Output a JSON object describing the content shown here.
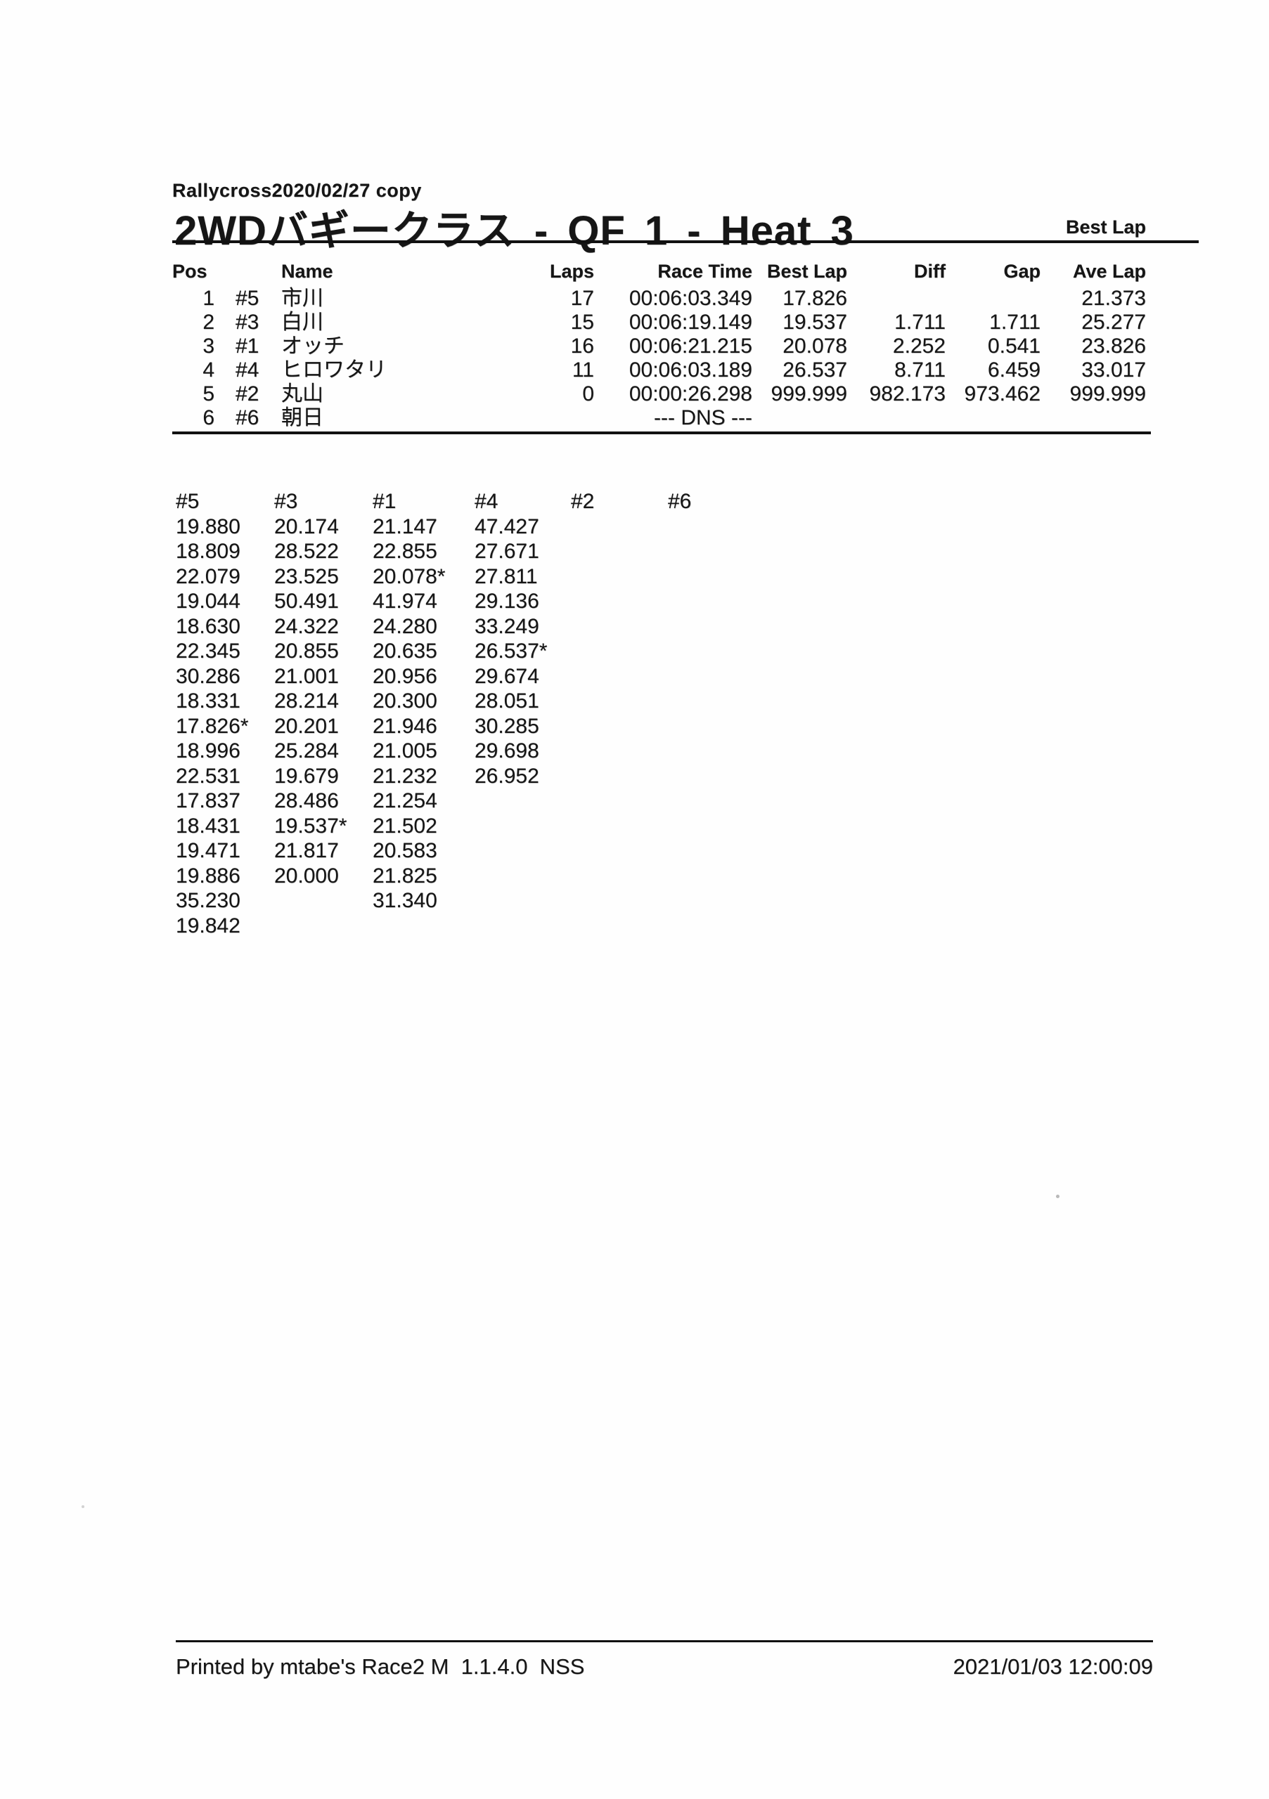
{
  "page": {
    "watermark": "Rallycross2020/02/27 copy",
    "title": "2WDバギークラス - QF 1 - Heat 3",
    "best_lap_label": "Best Lap"
  },
  "results": {
    "headers": {
      "pos": "Pos",
      "name": "Name",
      "laps": "Laps",
      "race_time": "Race Time",
      "best_lap": "Best Lap",
      "diff": "Diff",
      "gap": "Gap",
      "ave_lap": "Ave Lap"
    },
    "rows": [
      {
        "pos": "1",
        "car": "#5",
        "name": "市川",
        "laps": "17",
        "race_time": "00:06:03.349",
        "best_lap": "17.826",
        "diff": "",
        "gap": "",
        "ave_lap": "21.373"
      },
      {
        "pos": "2",
        "car": "#3",
        "name": "白川",
        "laps": "15",
        "race_time": "00:06:19.149",
        "best_lap": "19.537",
        "diff": "1.711",
        "gap": "1.711",
        "ave_lap": "25.277"
      },
      {
        "pos": "3",
        "car": "#1",
        "name": "オッチ",
        "laps": "16",
        "race_time": "00:06:21.215",
        "best_lap": "20.078",
        "diff": "2.252",
        "gap": "0.541",
        "ave_lap": "23.826"
      },
      {
        "pos": "4",
        "car": "#4",
        "name": "ヒロワタリ",
        "laps": "11",
        "race_time": "00:06:03.189",
        "best_lap": "26.537",
        "diff": "8.711",
        "gap": "6.459",
        "ave_lap": "33.017"
      },
      {
        "pos": "5",
        "car": "#2",
        "name": "丸山",
        "laps": "0",
        "race_time": "00:00:26.298",
        "best_lap": "999.999",
        "diff": "982.173",
        "gap": "973.462",
        "ave_lap": "999.999"
      },
      {
        "pos": "6",
        "car": "#6",
        "name": "朝日",
        "laps": "",
        "race_time": "--- DNS ---",
        "best_lap": "",
        "diff": "",
        "gap": "",
        "ave_lap": ""
      }
    ]
  },
  "lap_times": {
    "columns": [
      {
        "car": "#5",
        "laps": [
          "19.880",
          "18.809",
          "22.079",
          "19.044",
          "18.630",
          "22.345",
          "30.286",
          "18.331",
          "17.826*",
          "18.996",
          "22.531",
          "17.837",
          "18.431",
          "19.471",
          "19.886",
          "35.230",
          "19.842"
        ]
      },
      {
        "car": "#3",
        "laps": [
          "20.174",
          "28.522",
          "23.525",
          "50.491",
          "24.322",
          "20.855",
          "21.001",
          "28.214",
          "20.201",
          "25.284",
          "19.679",
          "28.486",
          "19.537*",
          "21.817",
          "20.000"
        ]
      },
      {
        "car": "#1",
        "laps": [
          "21.147",
          "22.855",
          "20.078*",
          "41.974",
          "24.280",
          "20.635",
          "20.956",
          "20.300",
          "21.946",
          "21.005",
          "21.232",
          "21.254",
          "21.502",
          "20.583",
          "21.825",
          "31.340"
        ]
      },
      {
        "car": "#4",
        "laps": [
          "47.427",
          "27.671",
          "27.811",
          "29.136",
          "33.249",
          "26.537*",
          "29.674",
          "28.051",
          "30.285",
          "29.698",
          "26.952"
        ]
      },
      {
        "car": "#2",
        "laps": []
      },
      {
        "car": "#6",
        "laps": []
      }
    ]
  },
  "footer": {
    "left": "Printed by mtabe's Race2 M  1.1.4.0  NSS",
    "right": "2021/01/03 12:00:09"
  }
}
